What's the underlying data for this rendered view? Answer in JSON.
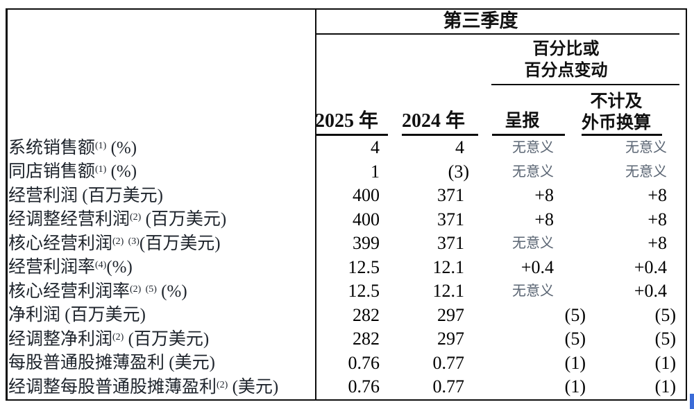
{
  "table": {
    "header": {
      "quarter": "第三季度",
      "pct_line1": "百分比或",
      "pct_line2": "百分点变动",
      "col_2025": "2025 年",
      "col_2024": "2024 年",
      "col_reported": "呈报",
      "col_exfx_line1": "不计及",
      "col_exfx_line2": "外币换算"
    },
    "na_text": "无意义",
    "rows": [
      {
        "label": "系统销售额(1) (%)",
        "y2025": "4",
        "y2024": "4",
        "reported": "无意义",
        "ex_fx": "无意义"
      },
      {
        "label": "同店销售额(1) (%)",
        "y2025": "1",
        "y2024": "(3)",
        "reported": "无意义",
        "ex_fx": "无意义"
      },
      {
        "label": "经营利润 (百万美元)",
        "y2025": "400",
        "y2024": "371",
        "reported": "+8",
        "ex_fx": "+8"
      },
      {
        "label": "经调整经营利润(2) (百万美元)",
        "y2025": "400",
        "y2024": "371",
        "reported": "+8",
        "ex_fx": "+8"
      },
      {
        "label": "核心经营利润(2) (3)(百万美元)",
        "y2025": "399",
        "y2024": "371",
        "reported": "无意义",
        "ex_fx": "+8"
      },
      {
        "label": "经营利润率(4)(%)",
        "y2025": "12.5",
        "y2024": "12.1",
        "reported": "+0.4",
        "ex_fx": "+0.4"
      },
      {
        "label": "核心经营利润率(2) (5) (%)",
        "y2025": "12.5",
        "y2024": "12.1",
        "reported": "无意义",
        "ex_fx": "+0.4"
      },
      {
        "label": "净利润 (百万美元)",
        "y2025": "282",
        "y2024": "297",
        "reported": "(5)",
        "ex_fx": "(5)"
      },
      {
        "label": "经调整净利润(2) (百万美元)",
        "y2025": "282",
        "y2024": "297",
        "reported": "(5)",
        "ex_fx": "(5)"
      },
      {
        "label": "每股普通股摊薄盈利 (美元)",
        "y2025": "0.76",
        "y2024": "0.77",
        "reported": "(1)",
        "ex_fx": "(1)"
      },
      {
        "label": "经调整每股普通股摊薄盈利(2) (美元)",
        "y2025": "0.76",
        "y2024": "0.77",
        "reported": "(1)",
        "ex_fx": "(1)"
      }
    ],
    "colors": {
      "border": "#0d0d0d",
      "label_text": "#1d232b",
      "number_text": "#000000",
      "na_text_color": "#5a6573",
      "fragment_blue": "#3a6bd8"
    }
  }
}
